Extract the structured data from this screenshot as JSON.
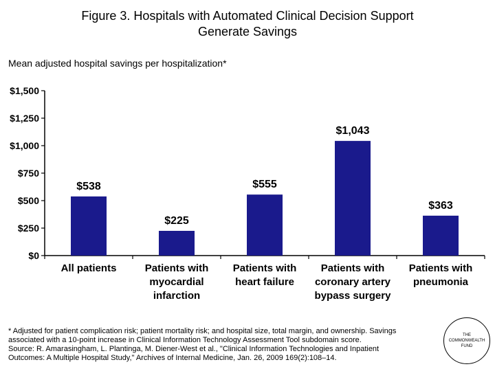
{
  "title_line1": "Figure 3. Hospitals with Automated Clinical Decision Support",
  "title_line2": "Generate Savings",
  "subtitle": "Mean adjusted hospital savings per hospitalization*",
  "chart_data": {
    "type": "bar",
    "categories": [
      [
        "All patients"
      ],
      [
        "Patients with",
        "myocardial",
        "infarction"
      ],
      [
        "Patients with",
        "heart failure"
      ],
      [
        "Patients with",
        "coronary artery",
        "bypass surgery"
      ],
      [
        "Patients with",
        "pneumonia"
      ]
    ],
    "values": [
      538,
      225,
      555,
      1043,
      363
    ],
    "data_labels": [
      "$538",
      "$225",
      "$555",
      "$1,043",
      "$363"
    ],
    "yticks": [
      0,
      250,
      500,
      750,
      1000,
      1250,
      1500
    ],
    "ytick_labels": [
      "$0",
      "$250",
      "$500",
      "$750",
      "$1,000",
      "$1,250",
      "$1,500"
    ],
    "ylim": [
      0,
      1500
    ],
    "bar_color": "#1a1a8c",
    "grid": false
  },
  "footnote": {
    "line1": "* Adjusted for patient complication risk; patient mortality risk; and hospital size, total margin, and ownership. Savings",
    "line2": "associated with a 10-point increase in Clinical Information Technology Assessment Tool subdomain score.",
    "line3": "Source: R. Amarasingham, L. Plantinga, M. Diener-West et al., \"Clinical Information Technologies and Inpatient",
    "line4": "Outcomes: A Multiple Hospital Study,\" Archives of Internal Medicine, Jan. 26, 2009 169(2):108–14."
  },
  "logo": {
    "line1": "THE",
    "line2": "COMMONWEALTH",
    "line3": "FUND"
  }
}
